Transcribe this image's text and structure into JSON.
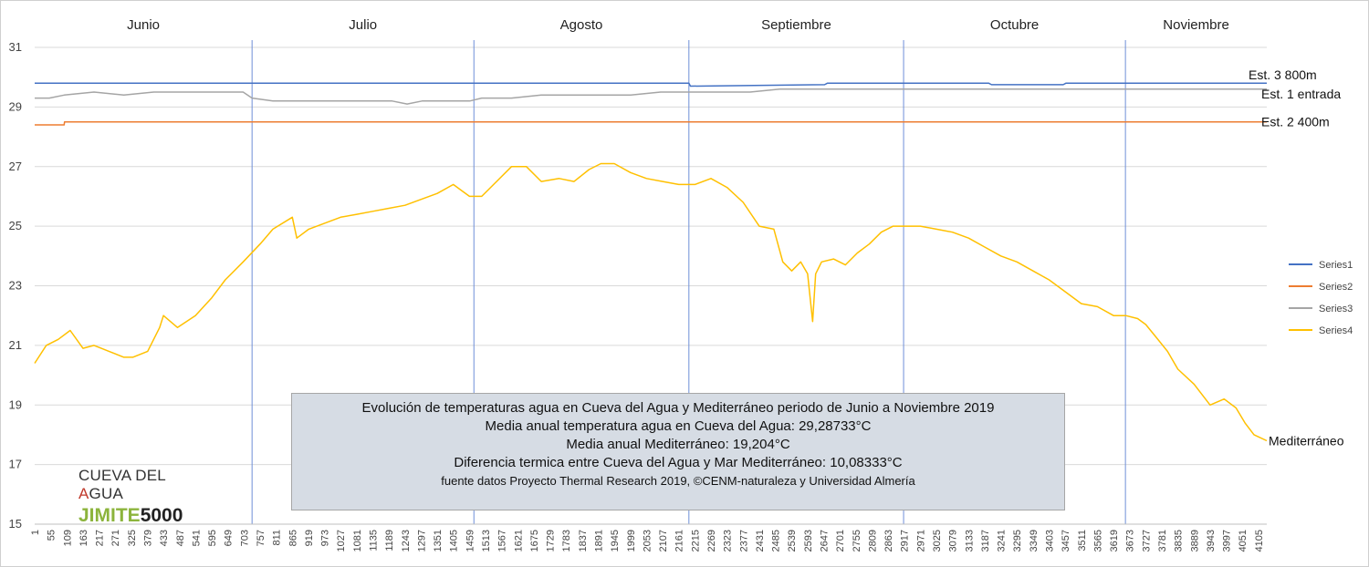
{
  "chart_data": {
    "type": "line",
    "title": "Evolución de temperaturas agua en Cueva del Agua y Mediterráneo periodo de Junio a Noviembre 2019",
    "ylim": [
      15,
      31
    ],
    "xlim": [
      1,
      4133
    ],
    "yticks": [
      "15",
      "17",
      "19",
      "21",
      "23",
      "25",
      "27",
      "29",
      "31"
    ],
    "xticks": [
      "1",
      "55",
      "109",
      "163",
      "217",
      "271",
      "325",
      "379",
      "433",
      "487",
      "541",
      "595",
      "649",
      "703",
      "757",
      "811",
      "865",
      "919",
      "973",
      "1027",
      "1081",
      "1135",
      "1189",
      "1243",
      "1297",
      "1351",
      "1405",
      "1459",
      "1513",
      "1567",
      "1621",
      "1675",
      "1729",
      "1783",
      "1837",
      "1891",
      "1945",
      "1999",
      "2053",
      "2107",
      "2161",
      "2215",
      "2269",
      "2323",
      "2377",
      "2431",
      "2485",
      "2539",
      "2593",
      "2647",
      "2701",
      "2755",
      "2809",
      "2863",
      "2917",
      "2971",
      "3025",
      "3079",
      "3133",
      "3187",
      "3241",
      "3295",
      "3349",
      "3403",
      "3457",
      "3511",
      "3565",
      "3619",
      "3673",
      "3727",
      "3781",
      "3835",
      "3889",
      "3943",
      "3997",
      "4051",
      "4105"
    ],
    "months": [
      {
        "label": "Junio",
        "start": 1
      },
      {
        "label": "Julio",
        "start": 730
      },
      {
        "label": "Agosto",
        "start": 1474
      },
      {
        "label": "Septiembre",
        "start": 2195
      },
      {
        "label": "Octubre",
        "start": 2915
      },
      {
        "label": "Noviembre",
        "start": 3659
      }
    ],
    "month_dividers": [
      730,
      1474,
      2195,
      2915,
      3659
    ],
    "series": [
      {
        "name": "Series1",
        "color": "#4472c4",
        "end_label": "Est. 3 800m",
        "x": [
          1,
          2195,
          2200,
          2650,
          2660,
          3200,
          3210,
          3450,
          3460,
          4133
        ],
        "y": [
          29.8,
          29.8,
          29.7,
          29.75,
          29.8,
          29.8,
          29.75,
          29.75,
          29.8,
          29.8
        ]
      },
      {
        "name": "Series2",
        "color": "#ed7d31",
        "end_label": "Est. 2 400m",
        "x": [
          1,
          100,
          101,
          4133
        ],
        "y": [
          28.4,
          28.4,
          28.5,
          28.5
        ]
      },
      {
        "name": "Series3",
        "color": "#a5a5a5",
        "end_label": "Est. 1 entrada",
        "x": [
          1,
          50,
          100,
          200,
          300,
          400,
          500,
          600,
          700,
          730,
          800,
          900,
          1000,
          1100,
          1200,
          1250,
          1300,
          1400,
          1460,
          1500,
          1600,
          1700,
          1800,
          1900,
          2000,
          2100,
          2195,
          2300,
          2400,
          2500,
          2600,
          2700,
          2800,
          2900,
          3000,
          3100,
          3200,
          3300,
          3400,
          3500,
          3600,
          3700,
          3800,
          3900,
          4000,
          4133
        ],
        "y": [
          29.3,
          29.3,
          29.4,
          29.5,
          29.4,
          29.5,
          29.5,
          29.5,
          29.5,
          29.3,
          29.2,
          29.2,
          29.2,
          29.2,
          29.2,
          29.1,
          29.2,
          29.2,
          29.2,
          29.3,
          29.3,
          29.4,
          29.4,
          29.4,
          29.4,
          29.5,
          29.5,
          29.5,
          29.5,
          29.6,
          29.6,
          29.6,
          29.6,
          29.6,
          29.6,
          29.6,
          29.6,
          29.6,
          29.6,
          29.6,
          29.6,
          29.6,
          29.6,
          29.6,
          29.6,
          29.6
        ]
      },
      {
        "name": "Series4",
        "color": "#ffc000",
        "end_label": "Mediterráneo",
        "x": [
          1,
          40,
          80,
          120,
          163,
          200,
          250,
          300,
          330,
          380,
          420,
          433,
          480,
          540,
          595,
          640,
          700,
          757,
          800,
          865,
          880,
          920,
          973,
          1027,
          1081,
          1135,
          1189,
          1243,
          1297,
          1351,
          1405,
          1459,
          1500,
          1550,
          1600,
          1650,
          1700,
          1760,
          1810,
          1860,
          1900,
          1945,
          1999,
          2053,
          2107,
          2161,
          2215,
          2269,
          2323,
          2377,
          2431,
          2480,
          2510,
          2540,
          2570,
          2593,
          2610,
          2620,
          2640,
          2680,
          2720,
          2760,
          2800,
          2840,
          2880,
          2917,
          2971,
          3025,
          3079,
          3133,
          3187,
          3241,
          3295,
          3349,
          3403,
          3457,
          3511,
          3565,
          3619,
          3660,
          3700,
          3727,
          3760,
          3800,
          3835,
          3889,
          3943,
          3990,
          4030,
          4060,
          4090,
          4133
        ],
        "y": [
          20.4,
          21.0,
          21.2,
          21.5,
          20.9,
          21.0,
          20.8,
          20.6,
          20.6,
          20.8,
          21.6,
          22.0,
          21.6,
          22.0,
          22.6,
          23.2,
          23.8,
          24.4,
          24.9,
          25.3,
          24.6,
          24.9,
          25.1,
          25.3,
          25.4,
          25.5,
          25.6,
          25.7,
          25.9,
          26.1,
          26.4,
          26.0,
          26.0,
          26.5,
          27.0,
          27.0,
          26.5,
          26.6,
          26.5,
          26.9,
          27.1,
          27.1,
          26.8,
          26.6,
          26.5,
          26.4,
          26.4,
          26.6,
          26.3,
          25.8,
          25.0,
          24.9,
          23.8,
          23.5,
          23.8,
          23.4,
          21.8,
          23.4,
          23.8,
          23.9,
          23.7,
          24.1,
          24.4,
          24.8,
          25.0,
          25.0,
          25.0,
          24.9,
          24.8,
          24.6,
          24.3,
          24.0,
          23.8,
          23.5,
          23.2,
          22.8,
          22.4,
          22.3,
          22.0,
          22.0,
          21.9,
          21.7,
          21.3,
          20.8,
          20.2,
          19.7,
          19.0,
          19.2,
          18.9,
          18.4,
          18.0,
          17.8
        ]
      }
    ],
    "legend": [
      "Series1",
      "Series2",
      "Series3",
      "Series4"
    ],
    "legend_position": "right",
    "grid": "horizontal"
  },
  "info": {
    "line1": "Evolución de temperaturas agua en Cueva del Agua y Mediterráneo periodo de Junio a Noviembre 2019",
    "line2": "Media anual temperatura agua en Cueva del Agua: 29,28733°C",
    "line3": "Media anual Mediterráneo: 19,204°C",
    "line4": "Diferencia termica entre Cueva del Agua y Mar Mediterráneo: 10,08333°C",
    "line5": "fuente datos Proyecto Thermal Research 2019, ©CENM-naturaleza y Universidad Almería"
  },
  "logo": {
    "top_a": "CUEVA DEL ",
    "top_b": "A",
    "top_c": "GUA",
    "bottom_a": "JIMITE",
    "bottom_b": "5000"
  }
}
